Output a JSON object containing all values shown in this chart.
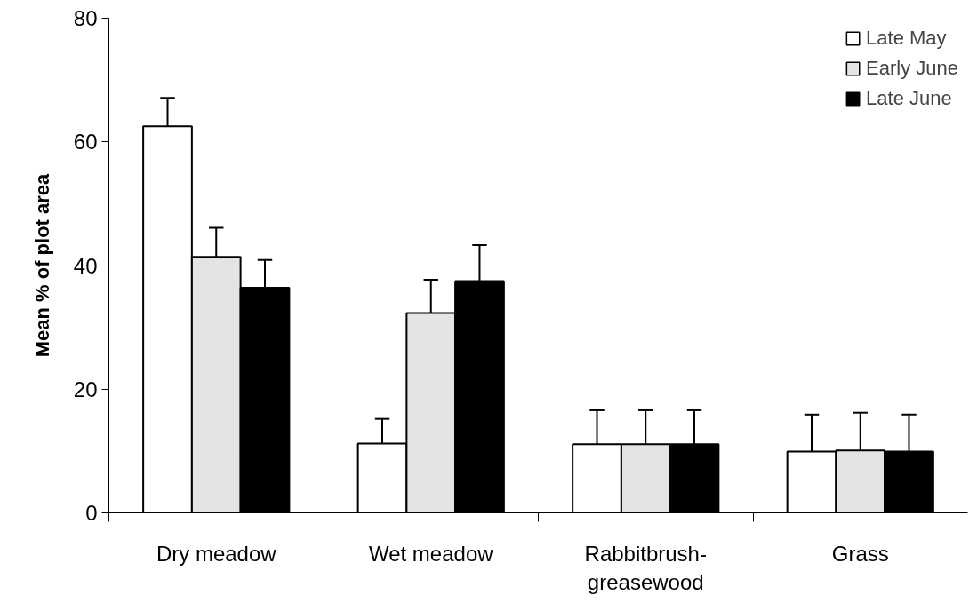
{
  "chart_data": {
    "type": "bar",
    "ylabel": "Mean % of plot area",
    "categories": [
      "Dry meadow",
      "Wet meadow",
      "Rabbitbrush-greasewood",
      "Grass"
    ],
    "series": [
      {
        "name": "Late May",
        "color": "#ffffff",
        "values": [
          62.5,
          11.2,
          11.1,
          9.9
        ],
        "errors": [
          [
            62.5,
            67.1
          ],
          [
            11.2,
            15.2
          ],
          [
            11.1,
            16.6
          ],
          [
            9.9,
            15.9
          ]
        ]
      },
      {
        "name": "Early June",
        "color": "#e4e4e4",
        "values": [
          41.4,
          32.3,
          11.1,
          10.1
        ],
        "errors": [
          [
            41.4,
            46.1
          ],
          [
            32.3,
            37.7
          ],
          [
            11.1,
            16.6
          ],
          [
            10.1,
            16.2
          ]
        ]
      },
      {
        "name": "Late June",
        "color": "#000000",
        "values": [
          36.4,
          37.5,
          11.1,
          9.9
        ],
        "errors": [
          [
            36.4,
            40.9
          ],
          [
            37.5,
            43.3
          ],
          [
            11.1,
            16.6
          ],
          [
            9.9,
            15.9
          ]
        ]
      }
    ],
    "ylim": [
      0,
      80
    ],
    "yticks": [
      0,
      20,
      40,
      60,
      80
    ],
    "grid": false,
    "legend": "top right"
  }
}
